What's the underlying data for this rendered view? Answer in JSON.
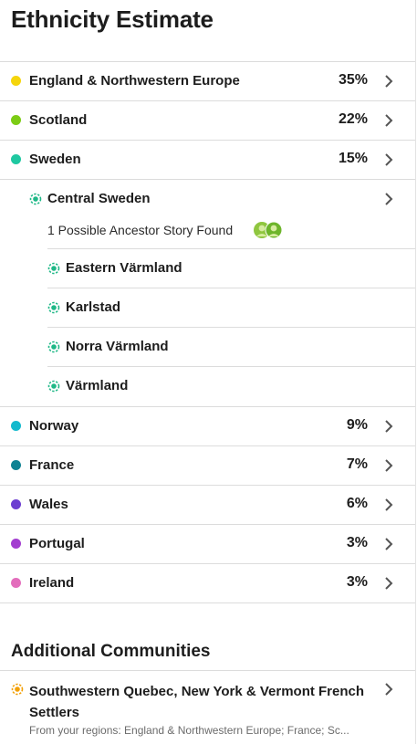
{
  "title": "Ethnicity Estimate",
  "regions": [
    {
      "name": "England & Northwestern Europe",
      "percent": "35%",
      "color": "#f5d50c"
    },
    {
      "name": "Scotland",
      "percent": "22%",
      "color": "#7ccc15"
    },
    {
      "name": "Sweden",
      "percent": "15%",
      "color": "#1fc8a1"
    }
  ],
  "sweden_detail": {
    "community": "Central Sweden",
    "story_text": "1 Possible Ancestor Story Found",
    "locations": [
      "Eastern Värmland",
      "Karlstad",
      "Norra Värmland",
      "Värmland"
    ],
    "ring_color": "#1fb887"
  },
  "regions_more": [
    {
      "name": "Norway",
      "percent": "9%",
      "color": "#14b9cd"
    },
    {
      "name": "France",
      "percent": "7%",
      "color": "#0f8293"
    },
    {
      "name": "Wales",
      "percent": "6%",
      "color": "#6c3ed1"
    },
    {
      "name": "Portugal",
      "percent": "3%",
      "color": "#a33ed0"
    },
    {
      "name": "Ireland",
      "percent": "3%",
      "color": "#e36dbc"
    }
  ],
  "additional": {
    "title": "Additional Communities",
    "community_name": "Southwestern Quebec, New York & Vermont French Settlers",
    "from_text": "From your regions: England & Northwestern Europe; France; Sc...",
    "ring_color": "#f2a007"
  },
  "icons": {
    "chevron": "chevron-right-icon",
    "ring": "community-ring-icon",
    "avatars": "ancestor-story-avatars-icon"
  }
}
